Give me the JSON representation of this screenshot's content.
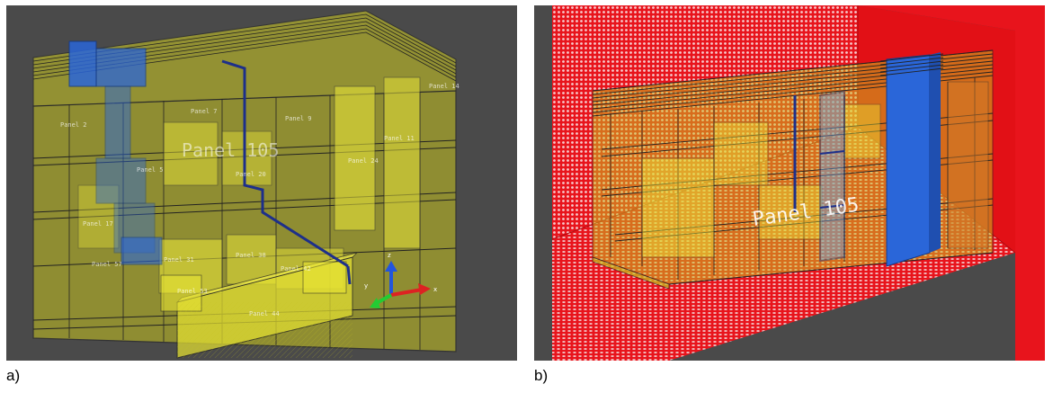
{
  "figure": {
    "caption_a": "a)",
    "caption_b": "b)"
  },
  "scene_a": {
    "main_label": "Panel 105",
    "small_labels": [
      "Panel 2",
      "Panel 5",
      "Panel 7",
      "Panel 9",
      "Panel 11",
      "Panel 14",
      "Panel 17",
      "Panel 20",
      "Panel 24",
      "Panel 31",
      "Panel 38",
      "Panel 42",
      "Panel 44",
      "Panel 53",
      "Panel 57"
    ],
    "colors": {
      "background": "#4a4a4a",
      "structure": "#d6d21e",
      "highlight": "#2a66d9",
      "edges": "#1a1a0a"
    },
    "axes_icon": [
      "x-axis",
      "y-axis",
      "z-axis"
    ]
  },
  "scene_b": {
    "main_label": "Panel 105",
    "colors": {
      "background": "#4a4a4a",
      "structure": "#d6d21e",
      "highlight": "#2a66d9",
      "walls": "#e8141c",
      "edges": "#1a1a0a"
    }
  }
}
